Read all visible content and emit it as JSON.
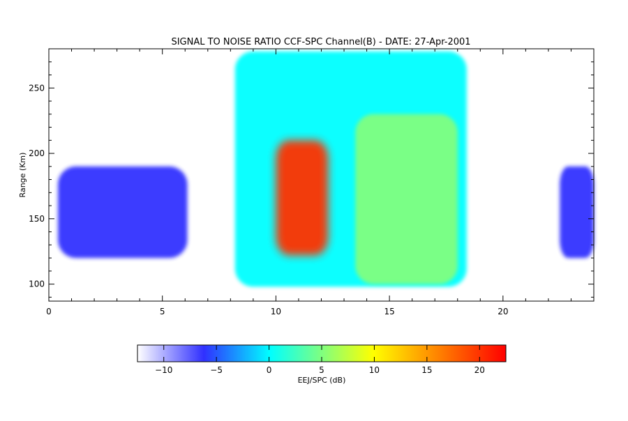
{
  "chart_data": {
    "type": "heatmap",
    "title": "SIGNAL TO NOISE RATIO CCF-SPC Channel(B) - DATE: 27-Apr-2001",
    "xlabel": "",
    "ylabel": "Range (Km)",
    "xlim": [
      0,
      24
    ],
    "ylim": [
      87,
      280
    ],
    "x_ticks": [
      0,
      5,
      10,
      15,
      20
    ],
    "y_ticks": [
      100,
      150,
      200,
      250
    ],
    "grid": false,
    "colorbar": {
      "label": "EEJ/SPC (dB)",
      "range": [
        -12.5,
        22.5
      ],
      "ticks": [
        -10,
        -5,
        0,
        5,
        10,
        15,
        20
      ],
      "colors": [
        "#ffffff",
        "#3030ff",
        "#00ffff",
        "#ffff00",
        "#ff0000"
      ],
      "color_stops_db": [
        -12.5,
        -6,
        0,
        10,
        22.5
      ]
    },
    "regions": [
      {
        "x": [
          0.4,
          6.1
        ],
        "y": [
          120,
          190
        ],
        "snr_db": -6
      },
      {
        "x": [
          8.2,
          18.4
        ],
        "y": [
          98,
          278
        ],
        "snr_db": 0
      },
      {
        "x": [
          10.0,
          12.3
        ],
        "y": [
          122,
          210
        ],
        "snr_db": 20
      },
      {
        "x": [
          13.5,
          18.0
        ],
        "y": [
          100,
          230
        ],
        "snr_db": 5
      },
      {
        "x": [
          22.5,
          24.0
        ],
        "y": [
          120,
          190
        ],
        "snr_db": -6
      }
    ]
  }
}
